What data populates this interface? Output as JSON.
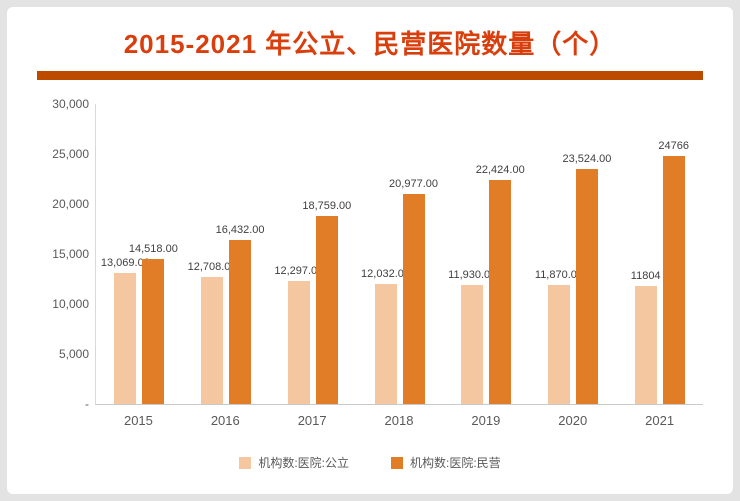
{
  "title": "2015-2021 年公立、民营医院数量（个）",
  "colors": {
    "title": "#d93e0d",
    "divider": "#bc4b00",
    "public_bar": "#f4c7a1",
    "private_bar": "#e17d26",
    "background": "#e3e3e3",
    "panel": "#ffffff",
    "axis_text": "#595959",
    "value_label_text": "#3f3f3f"
  },
  "chart_data": {
    "type": "bar",
    "title": "2015-2021 年公立、民营医院数量（个）",
    "categories": [
      "2015",
      "2016",
      "2017",
      "2018",
      "2019",
      "2020",
      "2021"
    ],
    "series": [
      {
        "name": "机构数:医院:公立",
        "color": "#f4c7a1",
        "values": [
          13069,
          12708,
          12297,
          12032,
          11930,
          11870,
          11804
        ],
        "labels": [
          "13,069.00",
          "12,708.00",
          "12,297.00",
          "12,032.00",
          "11,930.00",
          "11,870.00",
          "11804"
        ]
      },
      {
        "name": "机构数:医院:民营",
        "color": "#e17d26",
        "values": [
          14518,
          16432,
          18759,
          20977,
          22424,
          23524,
          24766
        ],
        "labels": [
          "14,518.00",
          "16,432.00",
          "18,759.00",
          "20,977.00",
          "22,424.00",
          "23,524.00",
          "24766"
        ]
      }
    ],
    "xlabel": "",
    "ylabel": "",
    "ylim": [
      0,
      30000
    ],
    "yticks": [
      "30,000",
      "25,000",
      "20,000",
      "15,000",
      "10,000",
      "5,000",
      "-"
    ],
    "ytick_values": [
      30000,
      25000,
      20000,
      15000,
      10000,
      5000,
      0
    ],
    "grid": false,
    "legend_position": "bottom"
  }
}
